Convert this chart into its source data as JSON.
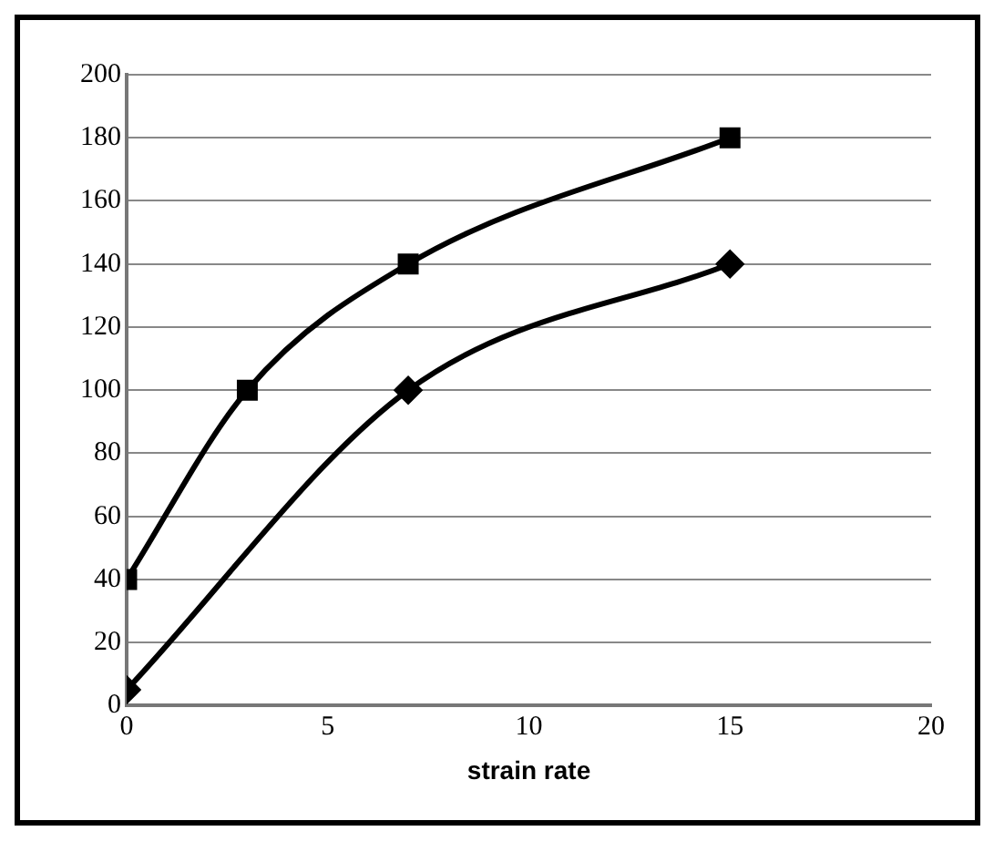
{
  "chart_data": {
    "type": "line",
    "xlabel": "strain rate",
    "xlim": [
      0,
      20
    ],
    "xticks": [
      0,
      5,
      10,
      15,
      20
    ],
    "ylim": [
      0,
      200
    ],
    "yticks": [
      0,
      20,
      40,
      60,
      80,
      100,
      120,
      140,
      160,
      180,
      200
    ],
    "grid": "y",
    "legend": false,
    "series": [
      {
        "color": "#000000",
        "marker": "square",
        "x": [
          0,
          3,
          7,
          15
        ],
        "values": [
          40,
          100,
          140,
          180
        ]
      },
      {
        "color": "#000000",
        "marker": "diamond",
        "x": [
          0,
          7,
          15
        ],
        "values": [
          5,
          100,
          140
        ]
      }
    ]
  }
}
